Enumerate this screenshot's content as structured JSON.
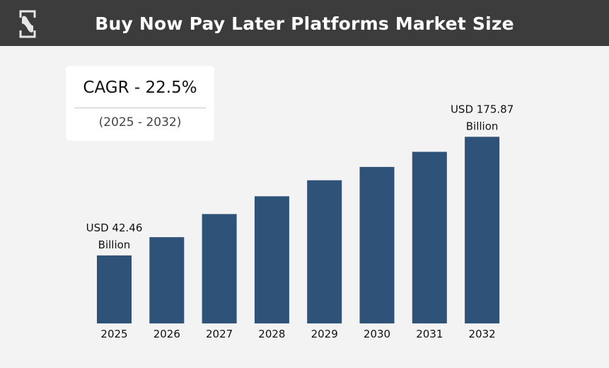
{
  "header": {
    "title": "Buy Now Pay Later Platforms Market Size",
    "logo": "brand-logo-icon"
  },
  "cagr": {
    "label": "CAGR - 22.5%",
    "period": "(2025 - 2032)"
  },
  "chart_data": {
    "type": "bar",
    "title": "Buy Now Pay Later Platforms Market Size",
    "categories": [
      "2025",
      "2026",
      "2027",
      "2028",
      "2029",
      "2030",
      "2031",
      "2032"
    ],
    "values": [
      42.46,
      63,
      89,
      109,
      127,
      142,
      159,
      175.87
    ],
    "unit": "USD Billion",
    "data_labels": [
      {
        "category": "2025",
        "line1": "USD 42.46",
        "line2": "Billion"
      },
      {
        "category": "2032",
        "line1": "USD 175.87",
        "line2": "Billion"
      }
    ],
    "ylim": [
      -34,
      200
    ],
    "grid": false,
    "bar_color": "#2e5278",
    "xlabel": "",
    "ylabel": ""
  }
}
